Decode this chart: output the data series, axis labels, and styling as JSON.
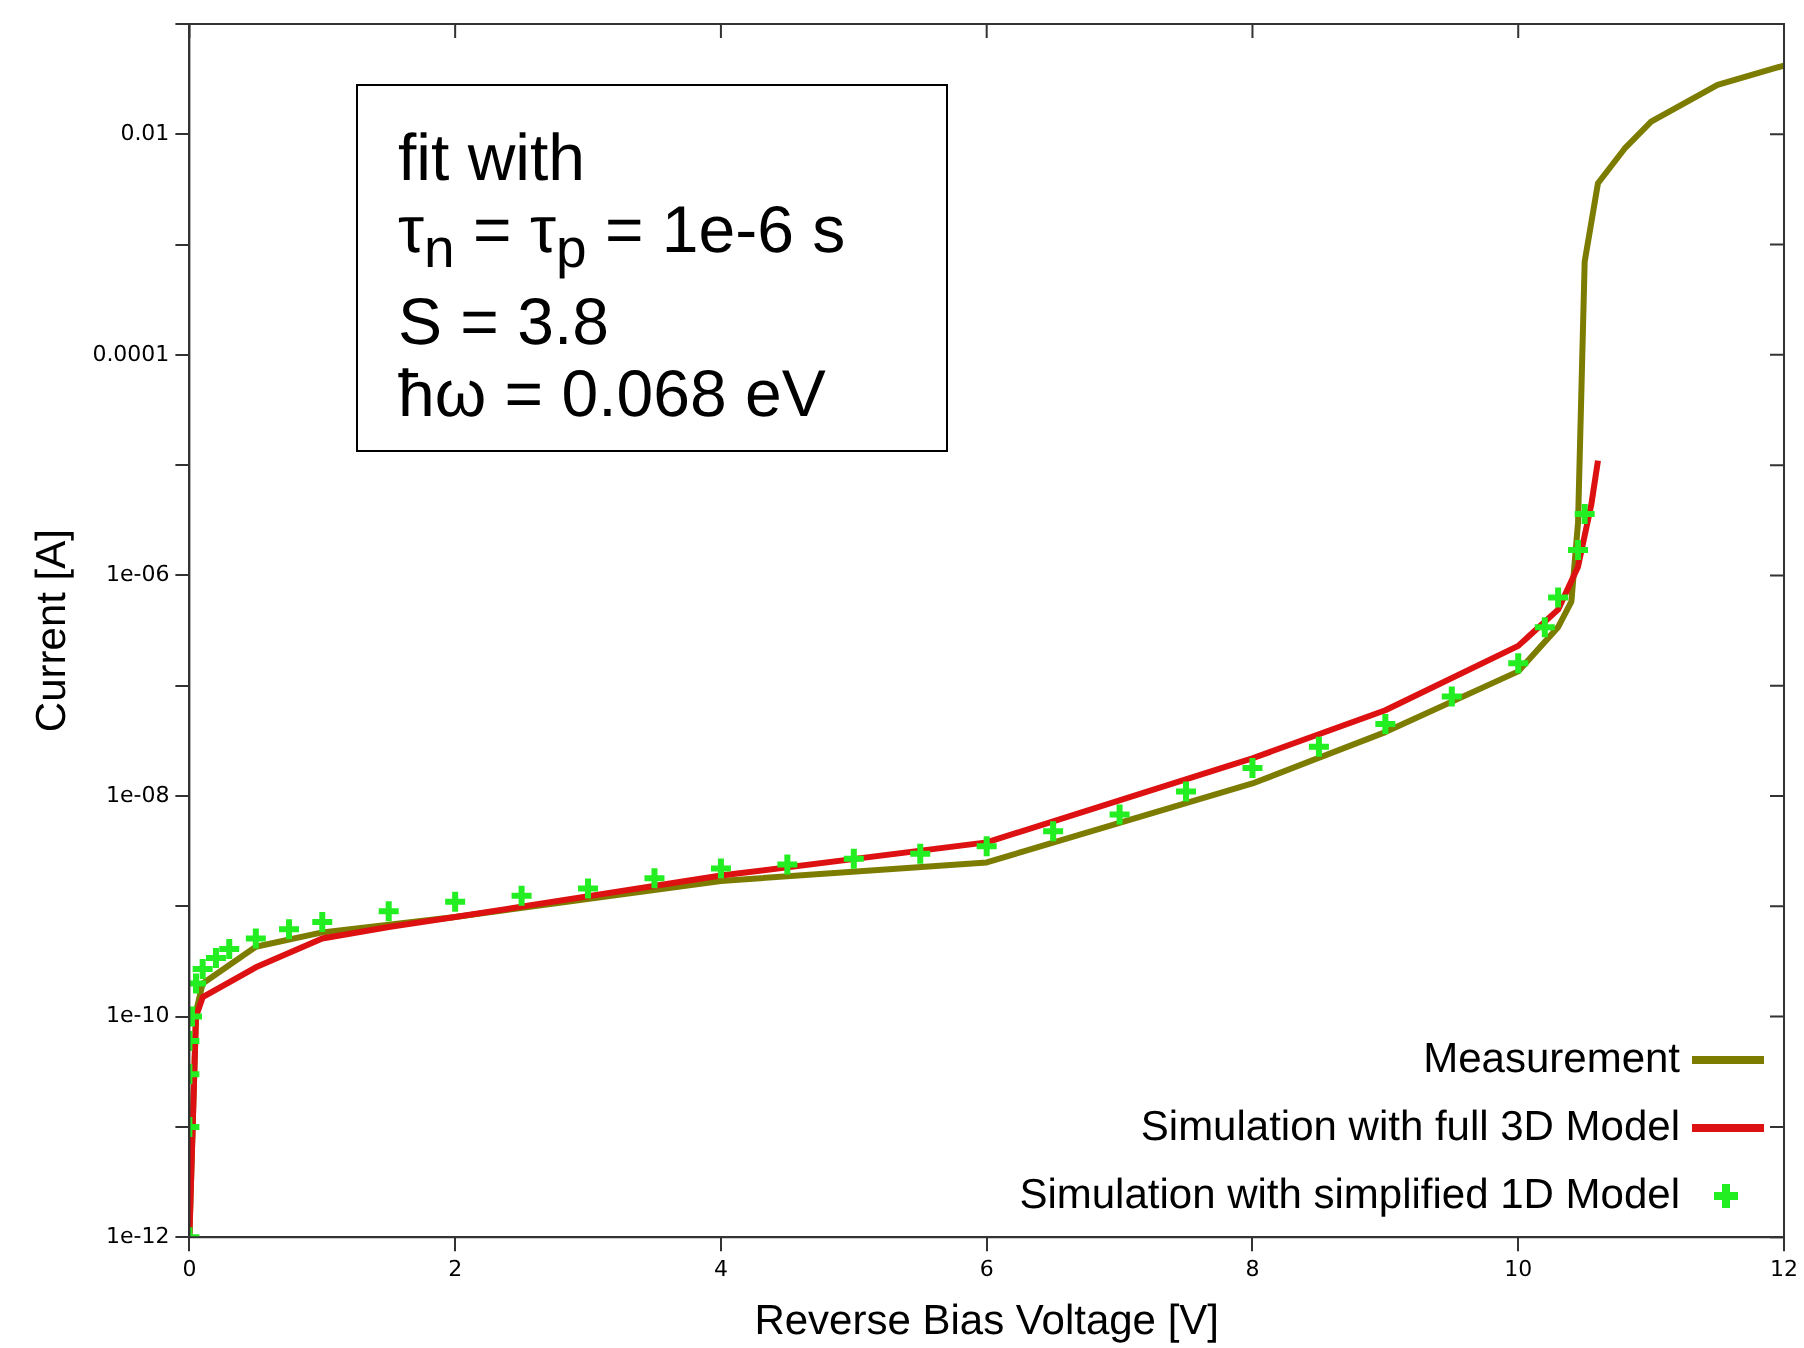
{
  "chart_data": {
    "type": "line",
    "xlabel": "Reverse Bias Voltage [V]",
    "ylabel": "Current [A]",
    "log": "y",
    "xlim": [
      0,
      12
    ],
    "xticks": [
      0,
      2,
      4,
      6,
      8,
      10,
      12
    ],
    "ylim": [
      1e-12,
      0.1
    ],
    "yticks": [
      {
        "value": 1e-12,
        "label": "1e-12"
      },
      {
        "value": 1e-11,
        "label": null
      },
      {
        "value": 1e-10,
        "label": "1e-10"
      },
      {
        "value": 1e-09,
        "label": null
      },
      {
        "value": 1e-08,
        "label": "1e-08"
      },
      {
        "value": 1e-07,
        "label": null
      },
      {
        "value": 1e-06,
        "label": "1e-06"
      },
      {
        "value": 1e-05,
        "label": null
      },
      {
        "value": 0.0001,
        "label": "0.0001"
      },
      {
        "value": 0.001,
        "label": null
      },
      {
        "value": 0.01,
        "label": "0.01"
      },
      {
        "value": 0.1,
        "label": null
      }
    ],
    "grid": false,
    "legend": "bottom right",
    "annotations": [
      "fit with",
      "τ$_{n}$ = τ$_{p}$ = 1e-6 s",
      "S = 3.8",
      "ħω = 0.068 eV"
    ],
    "series": [
      {
        "name": "Measurement",
        "color": "#7c7c00",
        "x": [
          0,
          0.05,
          0.1,
          0.5,
          1,
          2,
          4,
          6,
          8,
          9,
          10,
          10.3,
          10.4,
          10.45,
          10.5,
          10.6,
          10.8,
          11,
          11.5,
          12
        ],
        "values": [
          1e-12,
          1.1e-10,
          2e-10,
          4.3e-10,
          5.8e-10,
          8e-10,
          1.7e-09,
          2.5e-09,
          1.3e-08,
          3.8e-08,
          1.35e-07,
          3.4e-07,
          5.8e-07,
          3e-06,
          0.0007,
          0.0036,
          0.0074,
          0.013,
          0.028,
          0.042
        ]
      },
      {
        "name": "Simulation with full 3D Model",
        "color": "#dd1111",
        "x": [
          0,
          0.05,
          0.1,
          0.5,
          1,
          1.5,
          2,
          4,
          6,
          8,
          9,
          10,
          10.3,
          10.45,
          10.55,
          10.6
        ],
        "values": [
          1e-12,
          1e-10,
          1.5e-10,
          2.8e-10,
          5.1e-10,
          6.5e-10,
          8e-10,
          1.9e-09,
          3.8e-09,
          2.2e-08,
          6e-08,
          2.3e-07,
          4.9e-07,
          1.2e-06,
          4.4e-06,
          1.1e-05
        ]
      },
      {
        "name": "Simulation with simplified 1D Model",
        "type": "scatter",
        "marker": "cross",
        "color": "#22ee22",
        "x": [
          0,
          0,
          0,
          0,
          0.02,
          0.05,
          0.1,
          0.2,
          0.3,
          0.5,
          0.75,
          1,
          1.5,
          2,
          2.5,
          3,
          3.5,
          4,
          4.5,
          5,
          5.5,
          6,
          6.5,
          7,
          7.5,
          8,
          8.5,
          9,
          9.5,
          10,
          10.2,
          10.3,
          10.45,
          10.5
        ],
        "values": [
          1e-12,
          1e-11,
          3e-11,
          6e-11,
          1e-10,
          2e-10,
          2.7e-10,
          3.4e-10,
          4.1e-10,
          5.1e-10,
          6.2e-10,
          7.2e-10,
          9e-10,
          1.1e-09,
          1.25e-09,
          1.45e-09,
          1.8e-09,
          2.2e-09,
          2.4e-09,
          2.7e-09,
          3e-09,
          3.5e-09,
          4.8e-09,
          6.8e-09,
          1.1e-08,
          1.8e-08,
          2.8e-08,
          4.5e-08,
          8e-08,
          1.6e-07,
          3.4e-07,
          6.3e-07,
          1.7e-06,
          3.6e-06
        ]
      }
    ]
  }
}
